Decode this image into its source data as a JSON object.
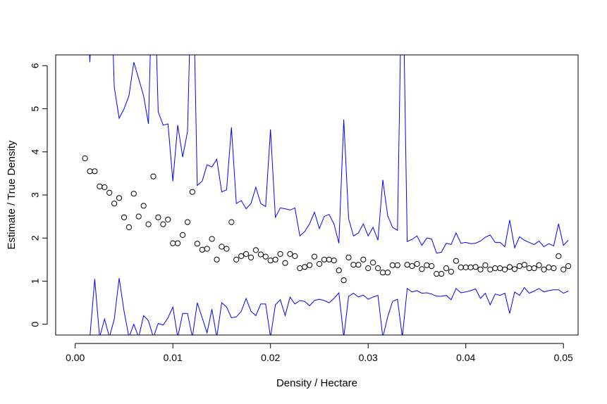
{
  "chart_data": {
    "type": "scatter",
    "title": "",
    "xlabel": "Density / Hectare",
    "ylabel": "Estimate / True Density",
    "xlim": [
      -0.002,
      0.0515
    ],
    "ylim": [
      -0.25,
      6.25
    ],
    "xticks": [
      0.0,
      0.01,
      0.02,
      0.03,
      0.04,
      0.05
    ],
    "xtick_labels": [
      "0.00",
      "0.01",
      "0.02",
      "0.03",
      "0.04",
      "0.05"
    ],
    "yticks": [
      0,
      1,
      2,
      3,
      4,
      5,
      6
    ],
    "ytick_labels": [
      "0",
      "1",
      "2",
      "3",
      "4",
      "5",
      "6"
    ],
    "grid": false,
    "colors": {
      "points": "#000000",
      "bounds": "#0000ff",
      "axis": "#000000"
    },
    "x": [
      0.001,
      0.0015,
      0.002,
      0.0025,
      0.003,
      0.0035,
      0.004,
      0.0045,
      0.005,
      0.0055,
      0.006,
      0.0065,
      0.007,
      0.0075,
      0.008,
      0.0085,
      0.009,
      0.0095,
      0.01,
      0.0105,
      0.011,
      0.0115,
      0.012,
      0.0125,
      0.013,
      0.0135,
      0.014,
      0.0145,
      0.015,
      0.0155,
      0.016,
      0.0165,
      0.017,
      0.0175,
      0.018,
      0.0185,
      0.019,
      0.0195,
      0.02,
      0.0205,
      0.021,
      0.0215,
      0.022,
      0.0225,
      0.023,
      0.0235,
      0.024,
      0.0245,
      0.025,
      0.0255,
      0.026,
      0.0265,
      0.027,
      0.0275,
      0.028,
      0.0285,
      0.029,
      0.0295,
      0.03,
      0.0305,
      0.031,
      0.0315,
      0.032,
      0.0325,
      0.033,
      0.0335,
      0.034,
      0.0345,
      0.035,
      0.0355,
      0.036,
      0.0365,
      0.037,
      0.0375,
      0.038,
      0.0385,
      0.039,
      0.0395,
      0.04,
      0.0405,
      0.041,
      0.0415,
      0.042,
      0.0425,
      0.043,
      0.0435,
      0.044,
      0.0445,
      0.045,
      0.0455,
      0.046,
      0.0465,
      0.047,
      0.0475,
      0.048,
      0.0485,
      0.049,
      0.0495,
      0.05,
      0.0505
    ],
    "series": [
      {
        "type": "scatter",
        "values": [
          3.85,
          3.55,
          3.55,
          3.2,
          3.18,
          3.05,
          2.8,
          2.93,
          2.48,
          2.25,
          3.03,
          2.5,
          2.75,
          2.32,
          3.43,
          2.48,
          2.32,
          2.43,
          1.88,
          1.88,
          2.07,
          2.37,
          3.07,
          1.87,
          1.73,
          1.75,
          1.98,
          1.5,
          1.8,
          1.75,
          2.37,
          1.5,
          1.58,
          1.63,
          1.55,
          1.72,
          1.62,
          1.57,
          1.48,
          1.5,
          1.63,
          1.42,
          1.63,
          1.58,
          1.3,
          1.33,
          1.37,
          1.57,
          1.4,
          1.5,
          1.5,
          1.48,
          1.25,
          1.02,
          1.55,
          1.38,
          1.38,
          1.5,
          1.3,
          1.43,
          1.3,
          1.2,
          1.2,
          1.37,
          1.37,
          null,
          1.38,
          1.35,
          1.4,
          1.28,
          1.37,
          1.35,
          1.17,
          1.17,
          1.3,
          1.22,
          1.47,
          1.32,
          1.32,
          1.32,
          1.33,
          1.27,
          1.37,
          1.27,
          1.3,
          1.3,
          1.27,
          1.33,
          1.28,
          1.35,
          1.38,
          1.3,
          1.3,
          1.37,
          1.27,
          1.32,
          1.3,
          1.58,
          1.27,
          1.35
        ]
      },
      {
        "type": "line",
        "values": [
          9.0,
          6.08,
          9.0,
          6.3,
          6.3,
          9.0,
          5.5,
          4.78,
          5.0,
          5.3,
          6.08,
          5.7,
          5.3,
          4.65,
          9.0,
          4.93,
          4.62,
          4.65,
          3.32,
          4.62,
          3.88,
          4.47,
          9.0,
          3.22,
          3.32,
          3.7,
          3.65,
          3.83,
          3.07,
          3.12,
          4.57,
          2.8,
          2.87,
          2.68,
          2.8,
          3.18,
          2.8,
          2.73,
          4.52,
          2.48,
          2.7,
          2.68,
          2.65,
          2.7,
          2.05,
          2.15,
          2.33,
          2.6,
          2.22,
          2.5,
          2.55,
          2.33,
          1.88,
          4.75,
          2.45,
          2.05,
          2.12,
          2.33,
          2.05,
          2.25,
          1.95,
          3.35,
          2.52,
          2.25,
          2.18,
          9.0,
          1.92,
          1.97,
          2.05,
          1.83,
          2.0,
          1.98,
          1.65,
          1.67,
          1.88,
          1.85,
          2.12,
          1.88,
          1.9,
          1.87,
          1.88,
          1.93,
          2.02,
          2.07,
          1.9,
          1.9,
          1.8,
          2.42,
          1.77,
          2.03,
          1.95,
          1.9,
          1.85,
          1.93,
          1.8,
          1.87,
          1.82,
          2.33,
          1.83,
          1.95
        ]
      },
      {
        "type": "line",
        "values": [
          -0.3,
          -0.3,
          1.05,
          -0.3,
          0.12,
          -0.3,
          0.12,
          1.07,
          0.3,
          -0.3,
          0.0,
          -0.3,
          0.2,
          0.08,
          -0.3,
          0.02,
          -0.02,
          0.15,
          0.4,
          -0.3,
          0.25,
          0.25,
          -0.3,
          0.5,
          0.15,
          -0.2,
          0.35,
          -0.3,
          0.5,
          0.4,
          0.15,
          0.17,
          0.3,
          0.6,
          0.3,
          0.2,
          0.47,
          0.47,
          -0.3,
          0.45,
          0.57,
          0.2,
          0.63,
          0.47,
          0.55,
          0.53,
          0.43,
          0.55,
          0.58,
          0.55,
          0.5,
          0.6,
          0.73,
          -0.3,
          0.65,
          0.72,
          0.63,
          0.68,
          0.58,
          0.63,
          0.67,
          -0.3,
          0.17,
          0.53,
          0.58,
          -0.3,
          0.83,
          0.75,
          0.78,
          0.72,
          0.73,
          0.7,
          0.65,
          0.65,
          0.67,
          0.57,
          0.83,
          0.73,
          0.75,
          0.78,
          0.82,
          0.6,
          0.72,
          0.45,
          0.7,
          0.67,
          0.72,
          0.25,
          0.75,
          0.67,
          0.85,
          0.72,
          0.77,
          0.83,
          0.75,
          0.78,
          0.8,
          0.8,
          0.72,
          0.77
        ]
      }
    ]
  }
}
